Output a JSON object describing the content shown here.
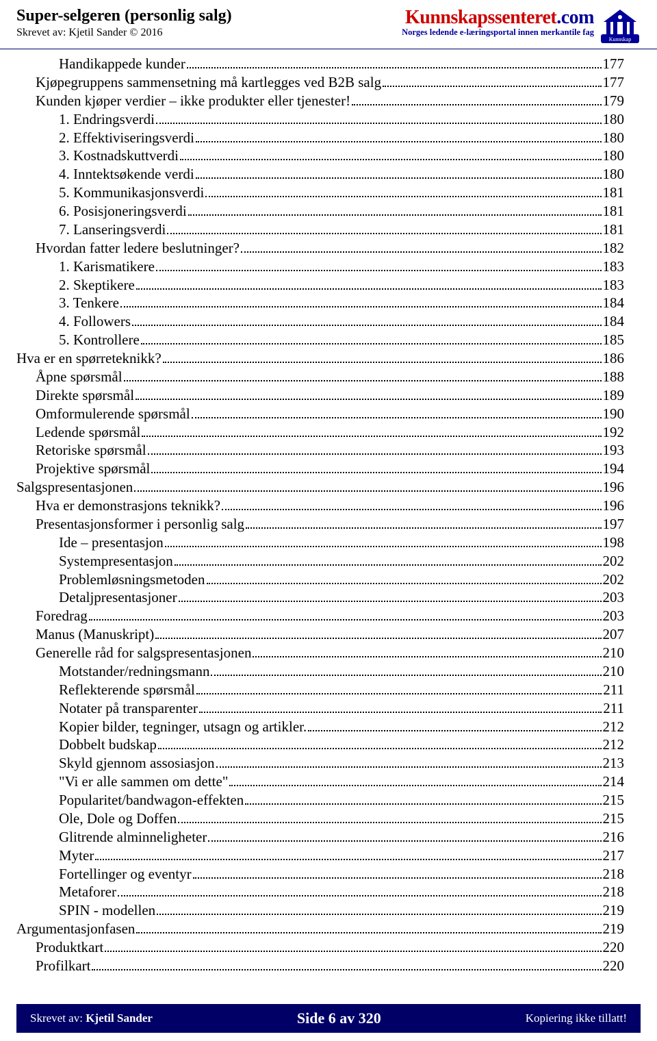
{
  "header": {
    "title": "Super-selgeren (personlig salg)",
    "author": "Skrevet av: Kjetil Sander © 2016",
    "brand_part1": "Kunnskapssenteret",
    "brand_part2": ".com",
    "tagline": "Norges ledende e-læringsportal innen merkantile fag",
    "logo_label": "Kunnskap"
  },
  "toc": [
    {
      "indent": 2,
      "text": "Handikappede kunder",
      "page": "177"
    },
    {
      "indent": 1,
      "text": "Kjøpegruppens sammensetning må kartlegges ved B2B salg",
      "page": "177"
    },
    {
      "indent": 1,
      "text": "Kunden kjøper verdier – ikke produkter eller tjenester!",
      "page": "179"
    },
    {
      "indent": 2,
      "text": "1. Endringsverdi",
      "page": "180"
    },
    {
      "indent": 2,
      "text": "2. Effektiviseringsverdi",
      "page": "180"
    },
    {
      "indent": 2,
      "text": "3. Kostnadskuttverdi",
      "page": "180"
    },
    {
      "indent": 2,
      "text": "4. Inntektsøkende verdi",
      "page": "180"
    },
    {
      "indent": 2,
      "text": "5. Kommunikasjonsverdi",
      "page": "181"
    },
    {
      "indent": 2,
      "text": "6. Posisjoneringsverdi",
      "page": "181"
    },
    {
      "indent": 2,
      "text": "7. Lanseringsverdi",
      "page": "181"
    },
    {
      "indent": 1,
      "text": "Hvordan fatter ledere beslutninger?",
      "page": "182"
    },
    {
      "indent": 2,
      "text": "1. Karismatikere",
      "page": "183"
    },
    {
      "indent": 2,
      "text": "2. Skeptikere",
      "page": "183"
    },
    {
      "indent": 2,
      "text": "3. Tenkere",
      "page": "184"
    },
    {
      "indent": 2,
      "text": "4. Followers",
      "page": "184"
    },
    {
      "indent": 2,
      "text": "5. Kontrollere",
      "page": "185"
    },
    {
      "indent": 0,
      "text": "Hva er en spørreteknikk?",
      "page": "186"
    },
    {
      "indent": 1,
      "text": "Åpne spørsmål",
      "page": "188"
    },
    {
      "indent": 1,
      "text": "Direkte spørsmål",
      "page": "189"
    },
    {
      "indent": 1,
      "text": "Omformulerende spørsmål",
      "page": "190"
    },
    {
      "indent": 1,
      "text": "Ledende spørsmål",
      "page": "192"
    },
    {
      "indent": 1,
      "text": "Retoriske spørsmål",
      "page": "193"
    },
    {
      "indent": 1,
      "text": "Projektive spørsmål",
      "page": "194"
    },
    {
      "indent": 0,
      "text": "Salgspresentasjonen",
      "page": "196"
    },
    {
      "indent": 1,
      "text": "Hva er demonstrasjons teknikk?",
      "page": "196"
    },
    {
      "indent": 1,
      "text": "Presentasjonsformer i personlig salg",
      "page": "197"
    },
    {
      "indent": 2,
      "text": "Ide – presentasjon",
      "page": "198"
    },
    {
      "indent": 2,
      "text": "Systempresentasjon",
      "page": "202"
    },
    {
      "indent": 2,
      "text": "Problemløsningsmetoden",
      "page": "202"
    },
    {
      "indent": 2,
      "text": "Detaljpresentasjoner",
      "page": "203"
    },
    {
      "indent": 1,
      "text": "Foredrag",
      "page": "203"
    },
    {
      "indent": 1,
      "text": "Manus (Manuskript)",
      "page": "207"
    },
    {
      "indent": 1,
      "text": "Generelle råd for salgspresentasjonen",
      "page": "210"
    },
    {
      "indent": 2,
      "text": "Motstander/redningsmann",
      "page": "210"
    },
    {
      "indent": 2,
      "text": "Reflekterende spørsmål",
      "page": "211"
    },
    {
      "indent": 2,
      "text": "Notater på transparenter",
      "page": "211"
    },
    {
      "indent": 2,
      "text": "Kopier bilder, tegninger, utsagn og artikler.",
      "page": "212"
    },
    {
      "indent": 2,
      "text": "Dobbelt budskap",
      "page": "212"
    },
    {
      "indent": 2,
      "text": "Skyld gjennom assosiasjon",
      "page": "213"
    },
    {
      "indent": 2,
      "text": "\"Vi er alle sammen om dette\"",
      "page": "214"
    },
    {
      "indent": 2,
      "text": "Popularitet/bandwagon-effekten",
      "page": "215"
    },
    {
      "indent": 2,
      "text": "Ole, Dole og Doffen",
      "page": "215"
    },
    {
      "indent": 2,
      "text": "Glitrende alminneligheter",
      "page": "216"
    },
    {
      "indent": 2,
      "text": "Myter",
      "page": "217"
    },
    {
      "indent": 2,
      "text": "Fortellinger og eventyr",
      "page": "218"
    },
    {
      "indent": 2,
      "text": "Metaforer",
      "page": "218"
    },
    {
      "indent": 2,
      "text": "SPIN - modellen",
      "page": "219"
    },
    {
      "indent": 0,
      "text": "Argumentasjonfasen",
      "page": "219"
    },
    {
      "indent": 1,
      "text": "Produktkart",
      "page": "220"
    },
    {
      "indent": 1,
      "text": "Profilkart",
      "page": "220"
    }
  ],
  "footer": {
    "left_prefix": "Skrevet av: ",
    "left_bold": "Kjetil Sander",
    "center": "Side 6 av 320",
    "right": "Kopiering ikke tillatt!"
  },
  "colors": {
    "rule": "#000066",
    "footer_bg": "#000066",
    "brand_red": "#cc0000",
    "brand_blue": "#000099"
  }
}
